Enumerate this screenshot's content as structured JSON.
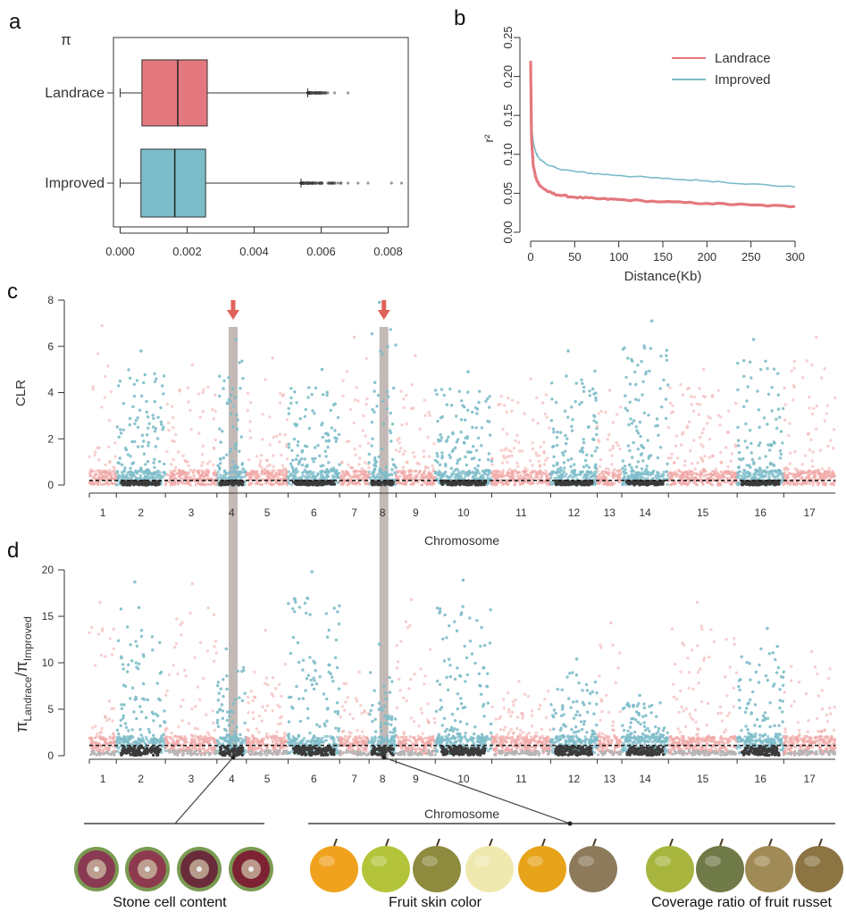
{
  "colors": {
    "landrace": "#e4787f",
    "improved": "#7dbcc9",
    "landrace_light": "#f0aaa8",
    "improved_light": "#8fc6d2",
    "dark_points": "#3b3b3b",
    "threshold": "#222222",
    "highlight_band": "#b9aeaa",
    "arrow": "#e0625a"
  },
  "panel_a": {
    "letter": "a",
    "axis_title": "π",
    "chart_data": {
      "type": "box",
      "orientation": "horizontal",
      "categories": [
        "Landrace",
        "Improved"
      ],
      "boxes": [
        {
          "name": "Landrace",
          "whisker_low": 0.0,
          "q1": 0.00065,
          "median": 0.00172,
          "q3": 0.0026,
          "whisker_high": 0.0056,
          "outliers": [
            0.0057,
            0.0058,
            0.0059,
            0.006,
            0.0061,
            0.0062,
            0.0064,
            0.0068
          ]
        },
        {
          "name": "Improved",
          "whisker_low": 0.0,
          "q1": 0.00062,
          "median": 0.00163,
          "q3": 0.00255,
          "whisker_high": 0.0054,
          "outliers": [
            0.0055,
            0.0056,
            0.0058,
            0.006,
            0.0062,
            0.0065,
            0.0068,
            0.0071,
            0.0074,
            0.0081,
            0.0084
          ]
        }
      ],
      "xlim": [
        -0.0002,
        0.0086
      ],
      "xticks": [
        "0.000",
        "0.002",
        "0.004",
        "0.006",
        "0.008"
      ],
      "xtick_values": [
        0,
        0.002,
        0.004,
        0.006,
        0.008
      ]
    }
  },
  "panel_b": {
    "letter": "b",
    "chart_data": {
      "type": "line",
      "xlabel": "Distance(Kb)",
      "ylabel": "r²",
      "xlim": [
        0,
        300
      ],
      "ylim": [
        0,
        0.25
      ],
      "xticks": [
        0,
        50,
        100,
        150,
        200,
        250,
        300
      ],
      "yticks": [
        "0.00",
        "0.05",
        "0.10",
        "0.15",
        "0.20",
        "0.25"
      ],
      "ytick_values": [
        0,
        0.05,
        0.1,
        0.15,
        0.2,
        0.25
      ],
      "legend_position": "top-right",
      "series": [
        {
          "name": "Landrace",
          "x": [
            0,
            1,
            3,
            6,
            10,
            20,
            30,
            50,
            75,
            100,
            150,
            200,
            250,
            300
          ],
          "y": [
            0.22,
            0.12,
            0.085,
            0.07,
            0.06,
            0.052,
            0.048,
            0.045,
            0.043,
            0.042,
            0.039,
            0.037,
            0.035,
            0.033
          ]
        },
        {
          "name": "Improved",
          "x": [
            0,
            1,
            3,
            6,
            10,
            20,
            30,
            50,
            75,
            100,
            150,
            200,
            250,
            300
          ],
          "y": [
            0.16,
            0.135,
            0.115,
            0.102,
            0.094,
            0.086,
            0.082,
            0.078,
            0.075,
            0.073,
            0.069,
            0.066,
            0.062,
            0.058
          ]
        }
      ]
    }
  },
  "chromosomes": [
    "1",
    "2",
    "3",
    "4",
    "5",
    "6",
    "7",
    "8",
    "9",
    "10",
    "11",
    "12",
    "13",
    "14",
    "15",
    "16",
    "17"
  ],
  "chromosome_sizes": [
    0.55,
    1.0,
    1.05,
    0.6,
    0.85,
    1.05,
    0.6,
    0.55,
    0.8,
    1.15,
    1.2,
    0.95,
    0.5,
    0.95,
    1.4,
    0.95,
    1.05
  ],
  "improved_chromosomes": [
    "2",
    "4",
    "6",
    "8",
    "10",
    "12",
    "14",
    "16"
  ],
  "highlight_positions": [
    {
      "chromosome": "4",
      "offset": 0.55
    },
    {
      "chromosome": "8",
      "offset": 0.55
    }
  ],
  "panel_c": {
    "letter": "c",
    "chart_data": {
      "type": "manhattan",
      "ylabel": "CLR",
      "xlabel": "Chromosome",
      "ylim": [
        0,
        8
      ],
      "yticks": [
        0,
        2,
        4,
        6,
        8
      ],
      "threshold": 0.2,
      "peaks": [
        {
          "chromosome": "1",
          "max": 6.9
        },
        {
          "chromosome": "2",
          "max": 5.8
        },
        {
          "chromosome": "3",
          "max": 5.2
        },
        {
          "chromosome": "4",
          "max": 6.3
        },
        {
          "chromosome": "5",
          "max": 5.5
        },
        {
          "chromosome": "6",
          "max": 5.0
        },
        {
          "chromosome": "7",
          "max": 6.4
        },
        {
          "chromosome": "8",
          "max": 7.9
        },
        {
          "chromosome": "9",
          "max": 5.6
        },
        {
          "chromosome": "10",
          "max": 4.9
        },
        {
          "chromosome": "11",
          "max": 4.6
        },
        {
          "chromosome": "12",
          "max": 5.8
        },
        {
          "chromosome": "13",
          "max": 4.1
        },
        {
          "chromosome": "14",
          "max": 7.1
        },
        {
          "chromosome": "15",
          "max": 5.0
        },
        {
          "chromosome": "16",
          "max": 6.3
        },
        {
          "chromosome": "17",
          "max": 6.4
        }
      ]
    }
  },
  "panel_d": {
    "letter": "d",
    "chart_data": {
      "type": "manhattan",
      "ylabel_main": "π",
      "ylabel_sub1": "Landrace",
      "ylabel_sep": "/π",
      "ylabel_sub2": "Improved",
      "xlabel": "Chromosome",
      "ylim": [
        0,
        20
      ],
      "yticks": [
        0,
        5,
        10,
        15,
        20
      ],
      "threshold": 1.1,
      "peaks": [
        {
          "chromosome": "1",
          "max": 16.5
        },
        {
          "chromosome": "2",
          "max": 18.7
        },
        {
          "chromosome": "3",
          "max": 18.5
        },
        {
          "chromosome": "4",
          "max": 11.5
        },
        {
          "chromosome": "5",
          "max": 13.5
        },
        {
          "chromosome": "6",
          "max": 19.8
        },
        {
          "chromosome": "7",
          "max": 9.0
        },
        {
          "chromosome": "8",
          "max": 12.0
        },
        {
          "chromosome": "9",
          "max": 16.8
        },
        {
          "chromosome": "10",
          "max": 18.9
        },
        {
          "chromosome": "11",
          "max": 8.0
        },
        {
          "chromosome": "12",
          "max": 10.4
        },
        {
          "chromosome": "13",
          "max": 14.3
        },
        {
          "chromosome": "14",
          "max": 6.5
        },
        {
          "chromosome": "15",
          "max": 16.5
        },
        {
          "chromosome": "16",
          "max": 13.7
        },
        {
          "chromosome": "17",
          "max": 11.2
        }
      ]
    }
  },
  "traits": [
    {
      "label": "Stone cell content",
      "fruits": [
        "#8a3a52",
        "#8e3a4e",
        "#6a2c3a",
        "#7c2233"
      ],
      "style": "cross-section"
    },
    {
      "label": "Fruit skin color",
      "fruits": [
        "#f0a21e",
        "#b3c43a",
        "#8e8a3e",
        "#efe9b0",
        "#e7a31a",
        "#8c7a5a"
      ],
      "style": "whole"
    },
    {
      "label": "Coverage ratio of fruit russet",
      "fruits": [
        "#a7b53e",
        "#707a48",
        "#a08a55",
        "#8c7443"
      ],
      "style": "whole"
    }
  ]
}
